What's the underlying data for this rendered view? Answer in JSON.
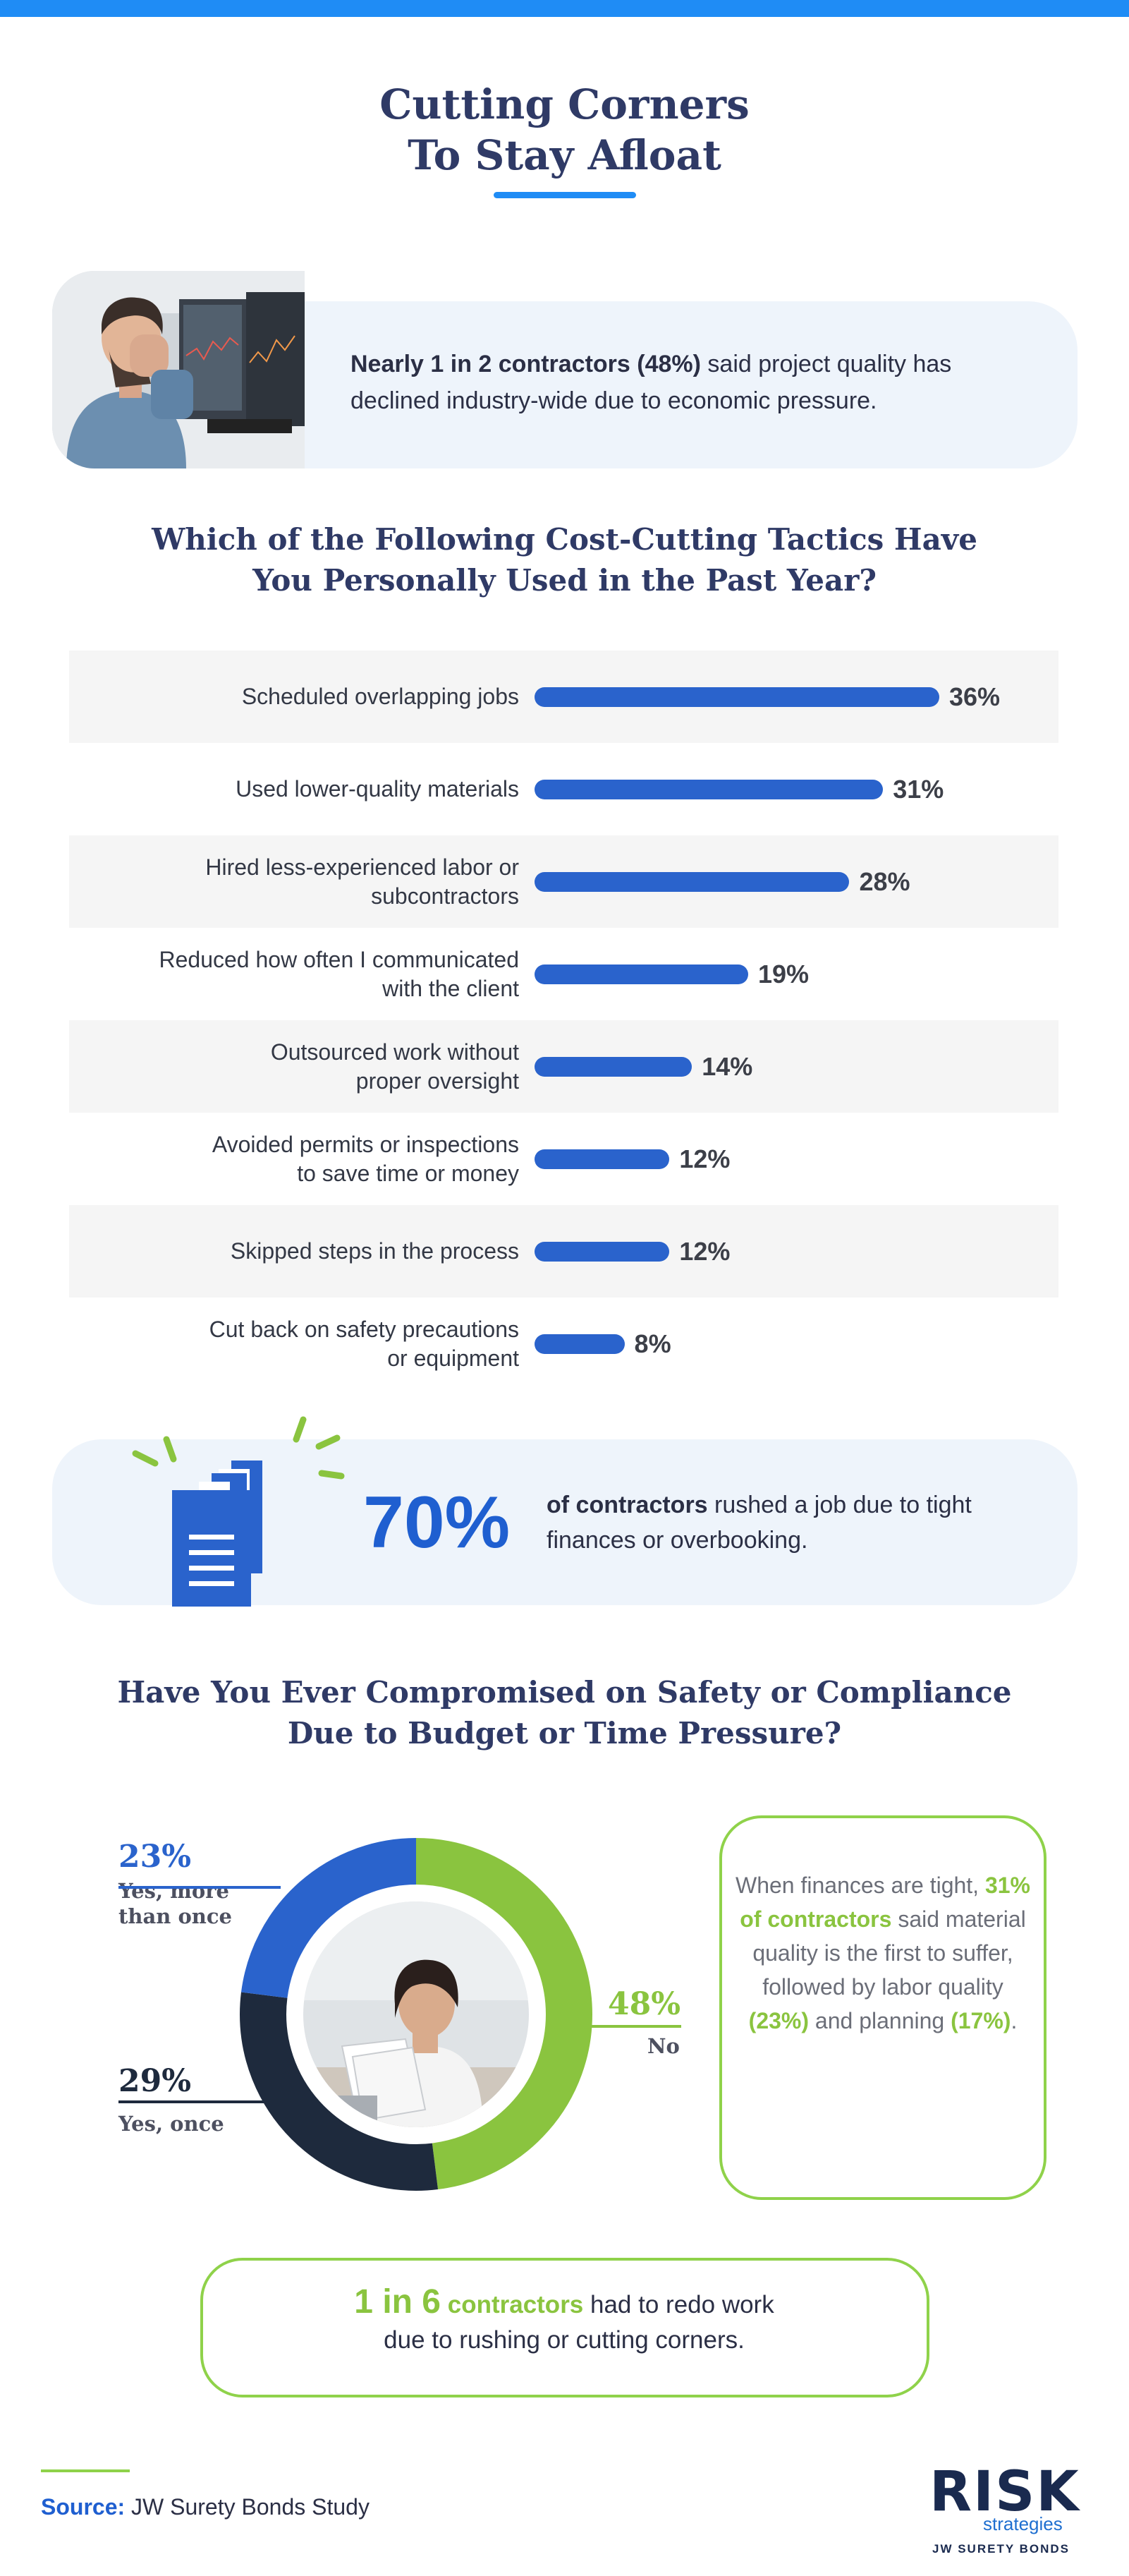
{
  "header": {
    "title_line1": "Cutting Corners",
    "title_line2": "To Stay Afloat",
    "accent_color": "#1f8cf5"
  },
  "callout1": {
    "bold": "Nearly 1 in 2 contractors (48%)",
    "rest": " said project quality has declined industry-wide due to economic pressure."
  },
  "chart_data": [
    {
      "type": "bar",
      "orientation": "horizontal",
      "title_line1": "Which of the Following Cost-Cutting Tactics Have",
      "title_line2": "You Personally Used in the Past Year?",
      "categories": [
        [
          "Scheduled overlapping jobs"
        ],
        [
          "Used lower-quality materials"
        ],
        [
          "Hired less-experienced labor or",
          "subcontractors"
        ],
        [
          "Reduced how often I communicated",
          "with the client"
        ],
        [
          "Outsourced work without",
          "proper oversight"
        ],
        [
          "Avoided permits or inspections",
          "to save time or money"
        ],
        [
          "Skipped steps in the process"
        ],
        [
          "Cut back on safety precautions",
          "or equipment"
        ]
      ],
      "values": [
        36,
        31,
        28,
        19,
        14,
        12,
        12,
        8
      ],
      "labels": [
        "36%",
        "31%",
        "28%",
        "19%",
        "14%",
        "12%",
        "12%",
        "8%"
      ],
      "unit": "%",
      "bar_color": "#2a63cc"
    },
    {
      "type": "pie",
      "variant": "donut",
      "title_line1": "Have You Ever Compromised on Safety or Compliance",
      "title_line2": "Due to Budget or Time Pressure?",
      "slices": [
        {
          "label_line1": "No",
          "label_line2": "",
          "value": 48,
          "pct": "48%",
          "color": "#8ac43f"
        },
        {
          "label_line1": "Yes, once",
          "label_line2": "",
          "value": 29,
          "pct": "29%",
          "color": "#1e2a3d"
        },
        {
          "label_line1": "Yes, more",
          "label_line2": "than once",
          "value": 23,
          "pct": "23%",
          "color": "#2a63cc"
        }
      ]
    }
  ],
  "callout2": {
    "big": "70%",
    "bold": "of contractors",
    "rest": " rushed a job due to tight finances or overbooking."
  },
  "side_note": {
    "p1": "When finances are tight, ",
    "g1": "31% of contractors",
    "p2": " said material quality is the first to suffer, followed by labor quality ",
    "g2": "(23%)",
    "p3": " and planning ",
    "g3": "(17%)",
    "p4": "."
  },
  "bottom_note": {
    "big": "1 in 6",
    "green": " contractors",
    "rest1": " had to redo work",
    "rest2": "due to rushing or cutting corners."
  },
  "footer": {
    "source_label": "Source:",
    "source_text": " JW Surety Bonds Study"
  },
  "logo": {
    "risk": "RISK",
    "strategies": "strategies",
    "jw": "JW SURETY BONDS"
  }
}
